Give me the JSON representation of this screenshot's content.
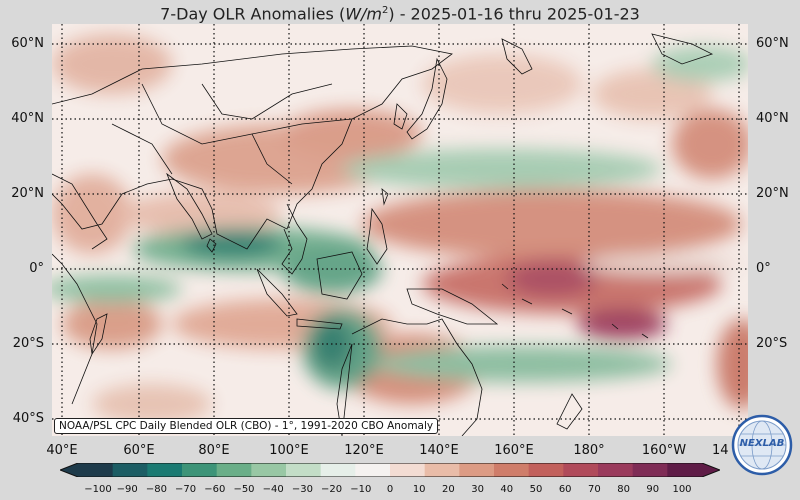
{
  "title": {
    "prefix": "7-Day OLR Anomalies (",
    "unit_var": "W/m",
    "unit_exp": "2",
    "suffix": ") - 2025-01-16 thru 2025-01-23"
  },
  "lat_labels": [
    "60°N",
    "40°N",
    "20°N",
    "0°",
    "20°S",
    "40°S"
  ],
  "lon_labels": [
    "40°E",
    "60°E",
    "80°E",
    "100°E",
    "120°E",
    "140°E",
    "160°E",
    "180°",
    "160°W",
    "14"
  ],
  "credit": "NOAA/PSL CPC Daily Blended OLR (CBO) - 1°, 1991-2020 CBO Anomaly",
  "colorbar": {
    "ticks": [
      "−100",
      "−90",
      "−80",
      "−70",
      "−60",
      "−50",
      "−40",
      "−30",
      "−20",
      "−10",
      "0",
      "10",
      "20",
      "30",
      "40",
      "50",
      "60",
      "70",
      "80",
      "90",
      "100"
    ],
    "colors": [
      "#1e3b4b",
      "#1c5d64",
      "#1a7a72",
      "#3d9478",
      "#6aae88",
      "#98c7a4",
      "#c3ddc7",
      "#e6efe9",
      "#f5f2f0",
      "#f3dcd3",
      "#e9bca8",
      "#dc9b84",
      "#cf7d6a",
      "#c2605c",
      "#b04a5a",
      "#9a3a5c",
      "#7f2c56",
      "#5f1c47"
    ]
  },
  "logo": {
    "text": "NEXLAB",
    "icon": "nexlab-globe-logo"
  }
}
